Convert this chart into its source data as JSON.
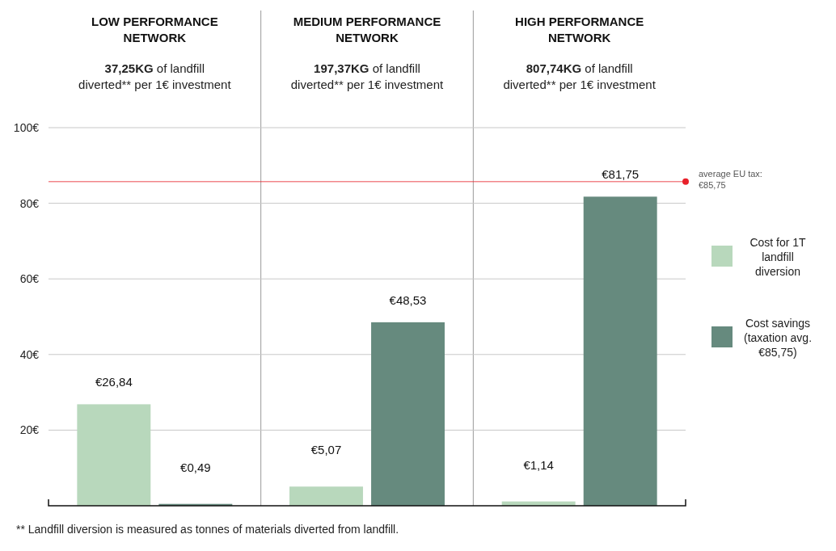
{
  "chart_data": {
    "type": "bar",
    "categories": [
      "LOW PERFORMANCE NETWORK",
      "MEDIUM PERFORMANCE NETWORK",
      "HIGH PERFORMANCE NETWORK"
    ],
    "series": [
      {
        "name": "Cost for 1T landfill diversion",
        "color": "#b8d8bc",
        "values": [
          26.84,
          5.07,
          1.14
        ],
        "value_labels": [
          "€26,84",
          "€5,07",
          "€1,14"
        ]
      },
      {
        "name": "Cost savings (taxation avg. €85,75)",
        "color": "#668a7e",
        "values": [
          0.49,
          48.53,
          81.75
        ],
        "value_labels": [
          "€0,49",
          "€48,53",
          "€81,75"
        ]
      }
    ],
    "ylim": [
      0,
      100
    ],
    "yticks": [
      {
        "value": 20,
        "label": "20€"
      },
      {
        "value": 40,
        "label": "40€"
      },
      {
        "value": 60,
        "label": "60€"
      },
      {
        "value": 80,
        "label": "80€"
      },
      {
        "value": 100,
        "label": "100€"
      }
    ],
    "grid": "y",
    "legend": "right",
    "ref_lines": [
      {
        "axis": "y",
        "value": 85.75,
        "label": "average EU tax: €85,75",
        "color": "#e8202a"
      }
    ],
    "annotations": [
      "37,25KG of landfill diverted** per 1€ investment",
      "197,37KG of landfill diverted** per 1€ investment",
      "807,74KG of landfill diverted** per 1€ investment",
      "** Landfill diversion is measured as tonnes of materials diverted from landfill."
    ]
  }
}
